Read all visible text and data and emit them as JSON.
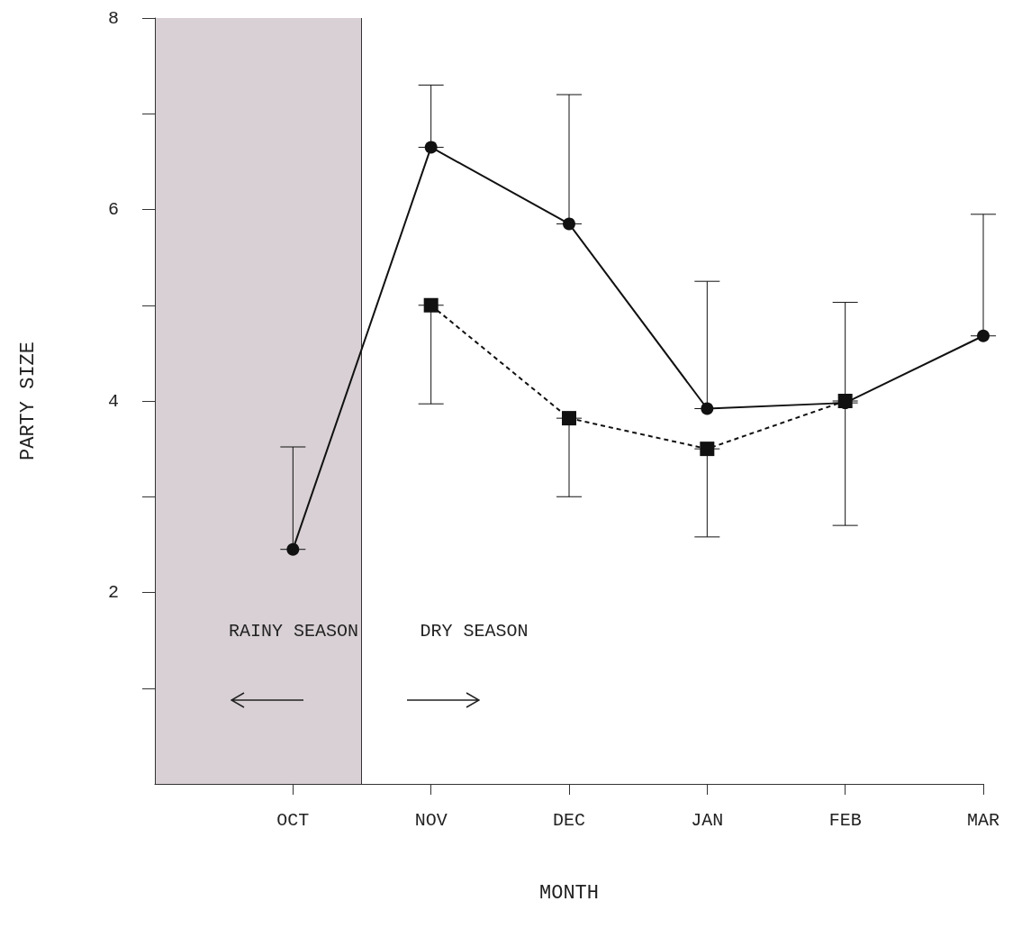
{
  "chart_data": {
    "type": "line",
    "xlabel": "MONTH",
    "ylabel": "PARTY SIZE",
    "categories": [
      null,
      "OCT",
      "NOV",
      "DEC",
      "JAN",
      "FEB",
      "MAR"
    ],
    "ylim": [
      0,
      8
    ],
    "yticks": [
      {
        "value": 1,
        "label": null
      },
      2,
      {
        "value": 3,
        "label": null
      },
      4,
      {
        "value": 5,
        "label": null
      },
      6,
      {
        "value": 7,
        "label": null
      },
      8
    ],
    "series": [
      {
        "color": "#111111",
        "marker": "circle",
        "line_style": "solid",
        "values": [
          null,
          2.45,
          6.65,
          5.85,
          3.92,
          3.98,
          4.68
        ],
        "errors": [
          null,
          [
            2.45,
            3.52
          ],
          [
            6.65,
            7.3
          ],
          [
            5.85,
            7.2
          ],
          [
            3.92,
            5.25
          ],
          [
            3.98,
            5.03
          ],
          [
            4.68,
            5.95
          ]
        ]
      },
      {
        "color": "#111111",
        "marker": "square",
        "line_style": "dashed",
        "values": [
          null,
          null,
          5.0,
          3.82,
          3.5,
          4.0,
          null
        ],
        "errors": [
          null,
          null,
          [
            3.97,
            5.0
          ],
          [
            3.0,
            3.82
          ],
          [
            2.58,
            3.5
          ],
          [
            2.7,
            4.0
          ],
          null
        ]
      }
    ],
    "annotations": [
      "RAINY SEASON",
      "DRY SEASON"
    ],
    "grid": false
  }
}
